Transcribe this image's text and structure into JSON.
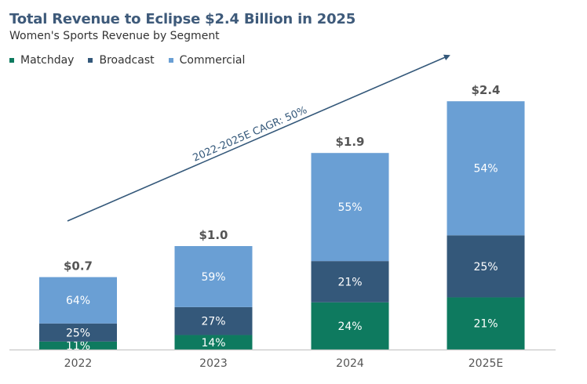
{
  "chart_data": {
    "type": "bar",
    "stacked": true,
    "title": "Total Revenue to Eclipse $2.4 Billion in 2025",
    "subtitle": "Women's Sports Revenue by Segment",
    "xlabel": "",
    "ylabel": "",
    "unit": "$B",
    "categories": [
      "2022",
      "2023",
      "2024",
      "2025E"
    ],
    "totals": [
      0.7,
      1.0,
      1.9,
      2.4
    ],
    "total_labels": [
      "$0.7",
      "$1.0",
      "$1.9",
      "$2.4"
    ],
    "series": [
      {
        "name": "Matchday",
        "color": "#0e7a5f",
        "shares_pct": [
          11,
          14,
          24,
          21
        ],
        "labels": [
          "11%",
          "14%",
          "24%",
          "21%"
        ]
      },
      {
        "name": "Broadcast",
        "color": "#34587a",
        "shares_pct": [
          25,
          27,
          21,
          25
        ],
        "labels": [
          "25%",
          "27%",
          "21%",
          "25%"
        ]
      },
      {
        "name": "Commercial",
        "color": "#6a9fd4",
        "shares_pct": [
          64,
          59,
          55,
          54
        ],
        "labels": [
          "64%",
          "59%",
          "55%",
          "54%"
        ]
      }
    ],
    "ylim": [
      0,
      2.4
    ],
    "grid": false,
    "legend_position": "top-left",
    "annotation": {
      "text": "2022-2025E CAGR: 50%",
      "type": "arrow",
      "from": "2022",
      "to": "2025E"
    }
  }
}
